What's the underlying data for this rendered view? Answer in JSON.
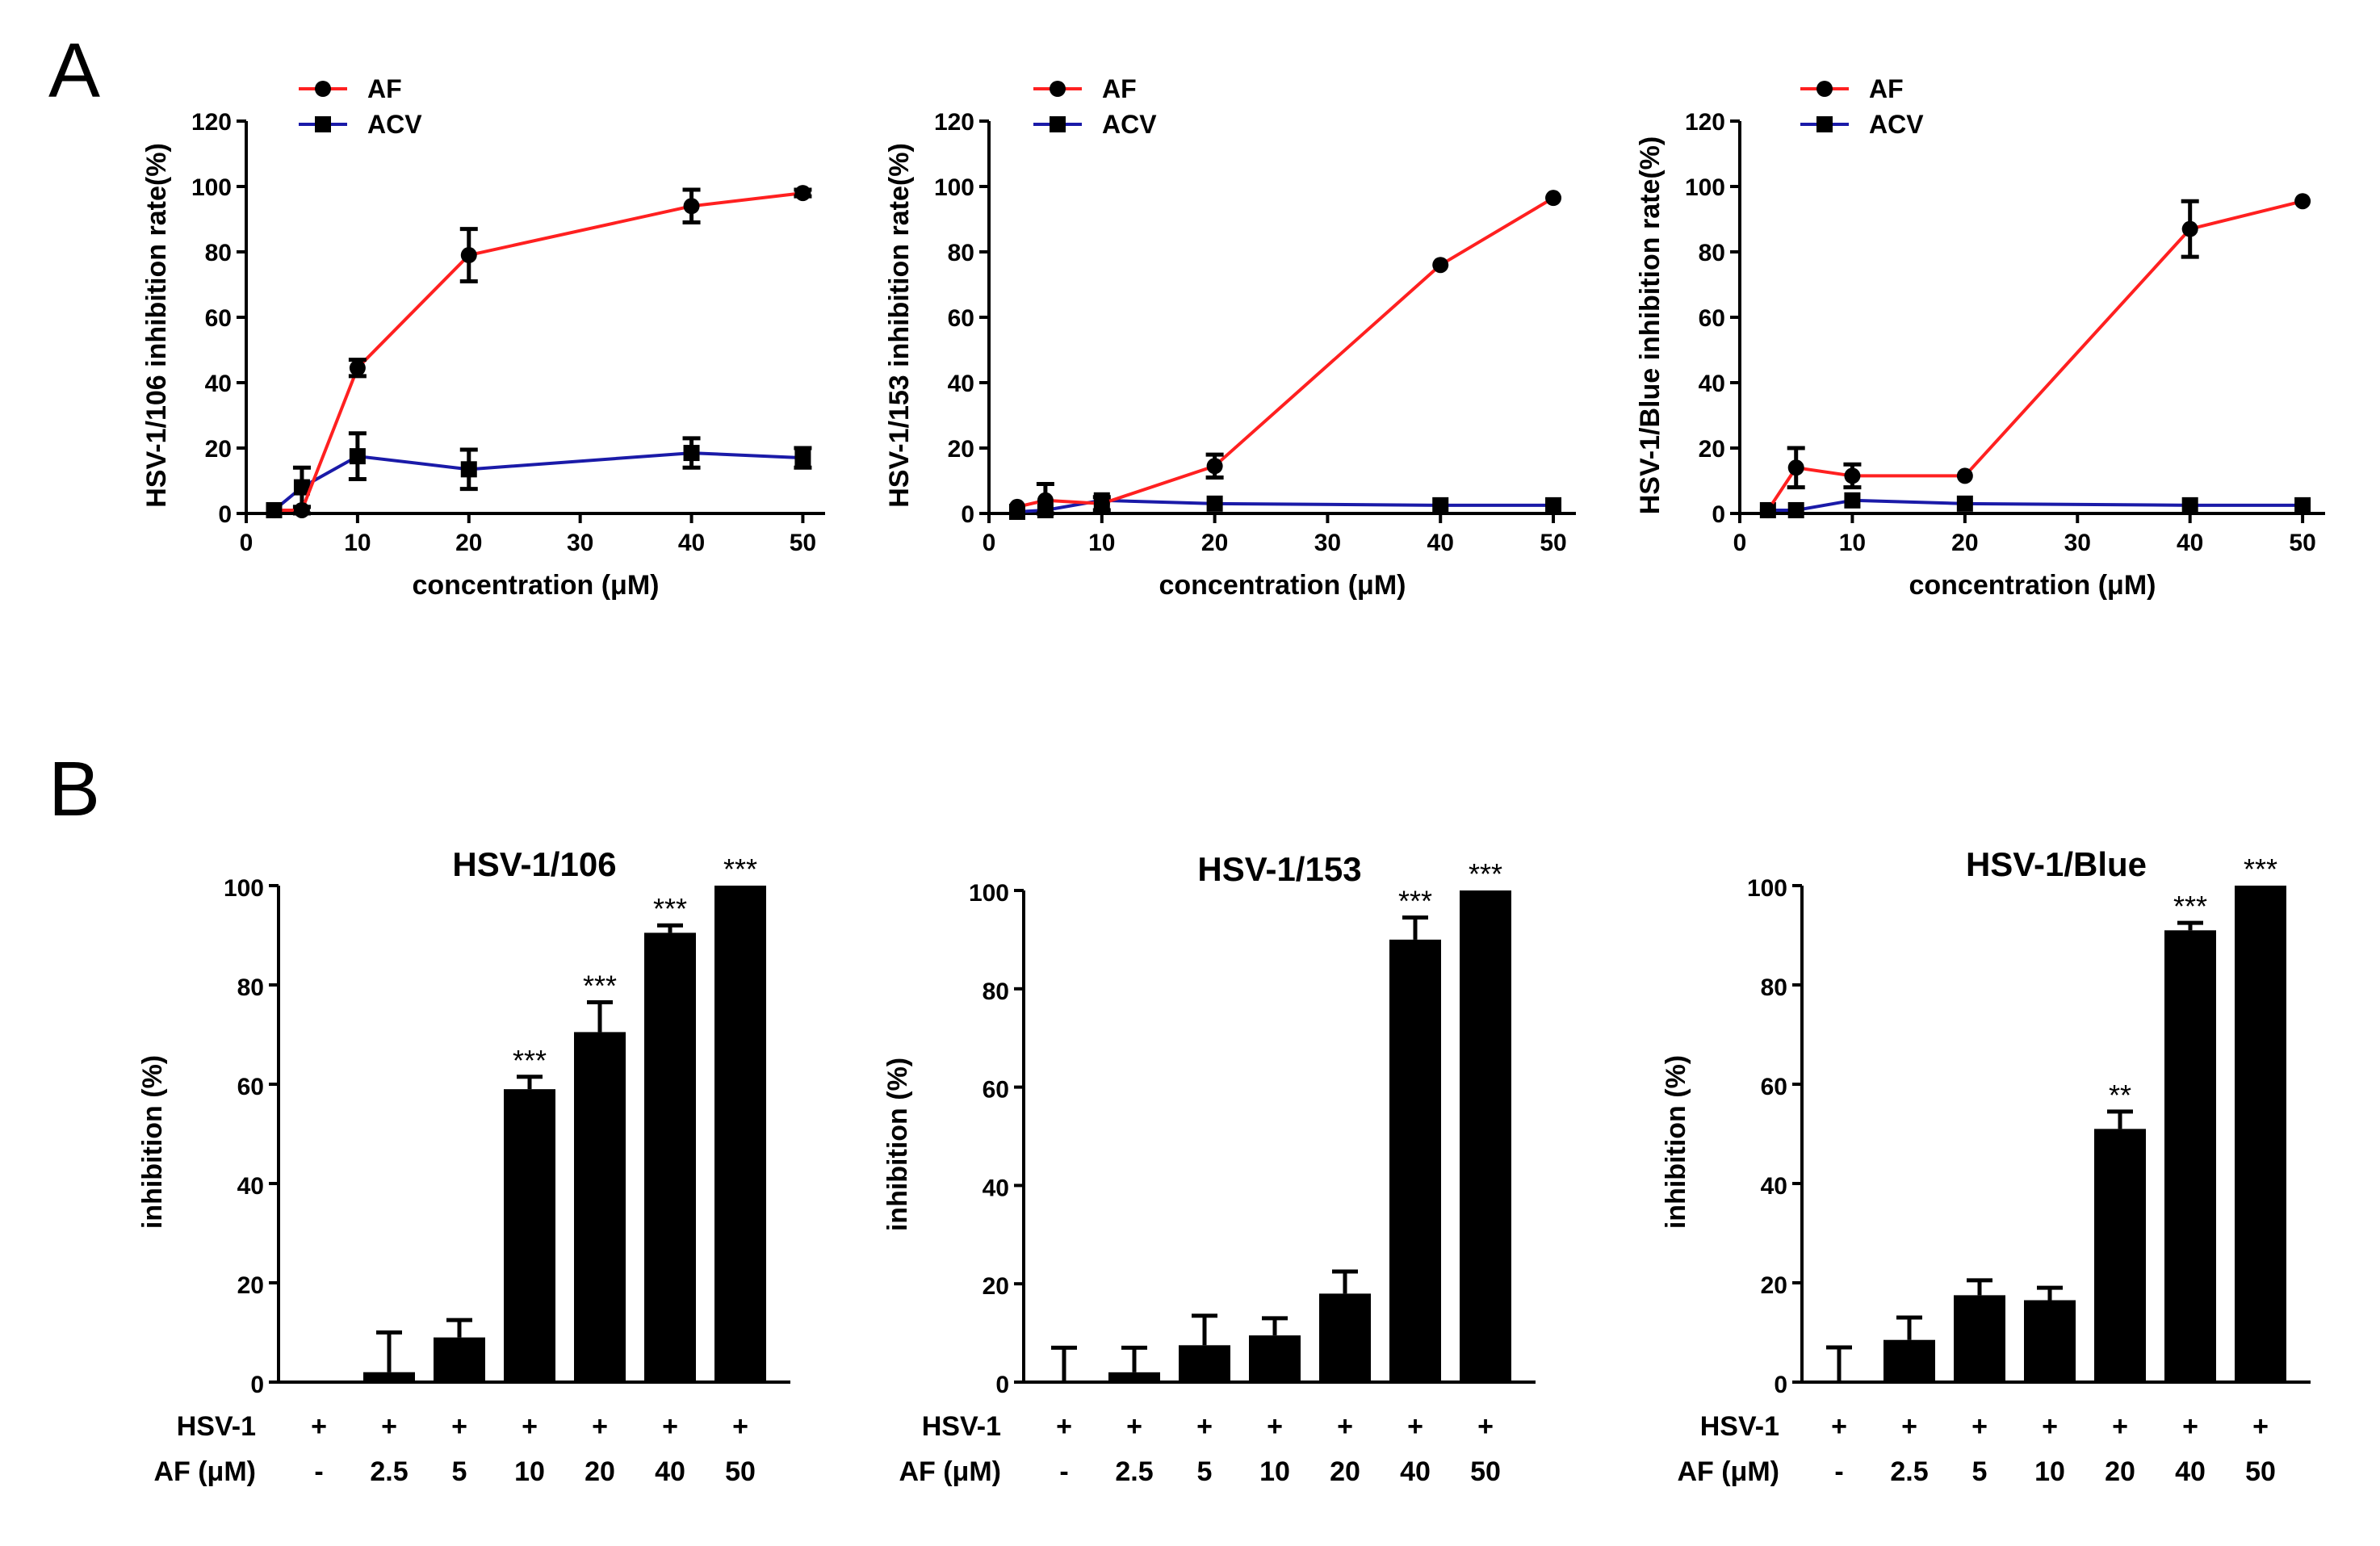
{
  "panel_labels": {
    "a": "A",
    "b": "B"
  },
  "colors": {
    "af": "#ff2020",
    "acv": "#1a1aa8",
    "bar": "#000000"
  },
  "legend": {
    "af": "AF",
    "acv": "ACV"
  },
  "row_labels": {
    "virus": "HSV-1",
    "dose": "AF (μM)"
  },
  "chart_data": [
    {
      "type": "line",
      "xlabel": "concentration (μM)",
      "ylabel": "HSV-1/106 inhibition rate(%)",
      "xlim": [
        0,
        52
      ],
      "ylim": [
        0,
        120
      ],
      "xticks": [
        0,
        10,
        20,
        30,
        40,
        50
      ],
      "yticks": [
        0,
        20,
        40,
        60,
        80,
        100,
        120
      ],
      "series": [
        {
          "name": "AF",
          "marker": "circle",
          "x": [
            2.5,
            5,
            10,
            20,
            40,
            50
          ],
          "y": [
            1,
            1,
            44.5,
            79,
            94,
            98
          ],
          "err": [
            0,
            1,
            2.5,
            8,
            5,
            1
          ]
        },
        {
          "name": "ACV",
          "marker": "square",
          "x": [
            2.5,
            5,
            10,
            20,
            40,
            50
          ],
          "y": [
            1,
            8,
            17.5,
            13.5,
            18.5,
            17
          ],
          "err": [
            0,
            6,
            7,
            6,
            4.5,
            3
          ]
        }
      ]
    },
    {
      "type": "line",
      "xlabel": "concentration (μM)",
      "ylabel": "HSV-1/153 inhibition rate(%)",
      "xlim": [
        0,
        52
      ],
      "ylim": [
        0,
        120
      ],
      "xticks": [
        0,
        10,
        20,
        30,
        40,
        50
      ],
      "yticks": [
        0,
        20,
        40,
        60,
        80,
        100,
        120
      ],
      "series": [
        {
          "name": "AF",
          "marker": "circle",
          "x": [
            2.5,
            5,
            10,
            20,
            40,
            50
          ],
          "y": [
            2,
            4,
            3,
            14.5,
            76,
            96.5
          ],
          "err": [
            0,
            5,
            2,
            3.5,
            0,
            0
          ]
        },
        {
          "name": "ACV",
          "marker": "square",
          "x": [
            2.5,
            5,
            10,
            20,
            40,
            50
          ],
          "y": [
            0.5,
            1,
            4,
            3,
            2.5,
            2.5
          ],
          "err": [
            0,
            0,
            0,
            0,
            0,
            0
          ]
        }
      ]
    },
    {
      "type": "line",
      "xlabel": "concentration (μM)",
      "ylabel": "HSV-1/Blue inhibition rate(%)",
      "xlim": [
        0,
        52
      ],
      "ylim": [
        0,
        120
      ],
      "xticks": [
        0,
        10,
        20,
        30,
        40,
        50
      ],
      "yticks": [
        0,
        20,
        40,
        60,
        80,
        100,
        120
      ],
      "series": [
        {
          "name": "AF",
          "marker": "circle",
          "x": [
            2.5,
            5,
            10,
            20,
            40,
            50
          ],
          "y": [
            1,
            14,
            11.5,
            11.5,
            87,
            95.5
          ],
          "err": [
            0,
            6,
            3.5,
            0,
            8.5,
            0
          ]
        },
        {
          "name": "ACV",
          "marker": "square",
          "x": [
            2.5,
            5,
            10,
            20,
            40,
            50
          ],
          "y": [
            1,
            1,
            4,
            3,
            2.5,
            2.5
          ],
          "err": [
            0,
            0,
            0,
            0,
            0,
            0
          ]
        }
      ]
    },
    {
      "type": "bar",
      "title": "HSV-1/106",
      "ylabel": "inhibition (%)",
      "ylim": [
        0,
        100
      ],
      "yticks": [
        0,
        20,
        40,
        60,
        80,
        100
      ],
      "virus_row": [
        "+",
        "+",
        "+",
        "+",
        "+",
        "+",
        "+"
      ],
      "categories": [
        "-",
        "2.5",
        "5",
        "10",
        "20",
        "40",
        "50"
      ],
      "values": [
        0,
        2,
        9,
        59,
        70.5,
        90.5,
        100
      ],
      "errors": [
        0,
        8,
        3.5,
        2.5,
        6,
        1.5,
        0
      ],
      "significance": [
        "",
        "",
        "",
        "***",
        "***",
        "***",
        "***"
      ]
    },
    {
      "type": "bar",
      "title": "HSV-1/153",
      "ylabel": "inhibition (%)",
      "ylim": [
        0,
        100
      ],
      "yticks": [
        0,
        20,
        40,
        60,
        80,
        100
      ],
      "virus_row": [
        "+",
        "+",
        "+",
        "+",
        "+",
        "+",
        "+"
      ],
      "categories": [
        "-",
        "2.5",
        "5",
        "10",
        "20",
        "40",
        "50"
      ],
      "values": [
        0,
        2,
        7.5,
        9.5,
        18,
        90,
        100
      ],
      "errors": [
        7,
        5,
        6,
        3.5,
        4.5,
        4.5,
        0
      ],
      "significance": [
        "",
        "",
        "",
        "",
        "",
        "***",
        "***"
      ]
    },
    {
      "type": "bar",
      "title": "HSV-1/Blue",
      "ylabel": "inhibition (%)",
      "ylim": [
        0,
        100
      ],
      "yticks": [
        0,
        20,
        40,
        60,
        80,
        100
      ],
      "virus_row": [
        "+",
        "+",
        "+",
        "+",
        "+",
        "+",
        "+"
      ],
      "categories": [
        "-",
        "2.5",
        "5",
        "10",
        "20",
        "40",
        "50"
      ],
      "values": [
        0,
        8.5,
        17.5,
        16.5,
        51,
        91,
        100
      ],
      "errors": [
        7,
        4.5,
        3,
        2.5,
        3.5,
        1.5,
        0
      ],
      "significance": [
        "",
        "",
        "",
        "",
        "**",
        "***",
        "***"
      ]
    }
  ]
}
